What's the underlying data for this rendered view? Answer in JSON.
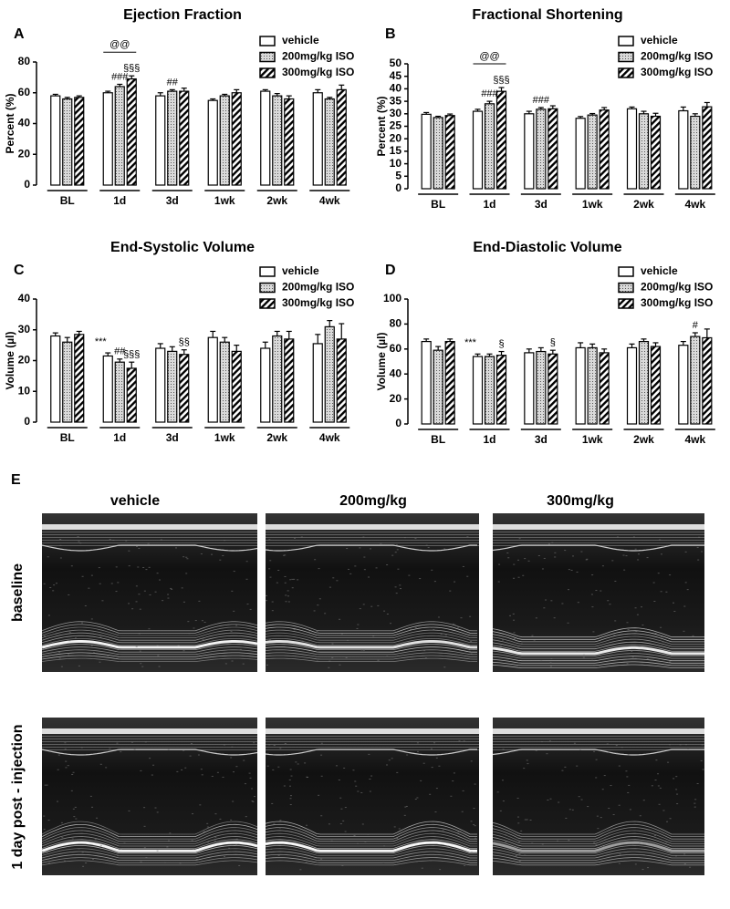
{
  "chart_data": [
    {
      "type": "bar",
      "panel": "A",
      "title": "Ejection Fraction",
      "ylabel": "Percent (%)",
      "categories": [
        "BL",
        "1d",
        "3d",
        "1wk",
        "2wk",
        "4wk"
      ],
      "series": [
        {
          "name": "vehicle",
          "fill": "white",
          "values": [
            58,
            60,
            58,
            55,
            61,
            60
          ],
          "errors": [
            1,
            1,
            2,
            1,
            1,
            2
          ]
        },
        {
          "name": "200mg/kg ISO",
          "fill": "dots",
          "values": [
            56,
            64,
            61,
            58,
            58,
            56
          ],
          "errors": [
            1,
            1.5,
            1,
            1,
            1.5,
            1
          ]
        },
        {
          "name": "300mg/kg ISO",
          "fill": "hatch",
          "values": [
            57,
            69,
            61,
            60,
            56,
            62
          ],
          "errors": [
            1,
            2,
            2,
            2,
            2,
            3
          ]
        }
      ],
      "ylim": [
        0,
        80
      ],
      "yticks": [
        0,
        20,
        40,
        60,
        80
      ],
      "annotations": [
        {
          "text": "@@",
          "category": "1d",
          "bracket": true
        },
        {
          "text": "###",
          "category": "1d",
          "series": "200mg/kg ISO"
        },
        {
          "text": "§§§",
          "category": "1d",
          "series": "300mg/kg ISO"
        },
        {
          "text": "##",
          "category": "3d",
          "series": "200mg/kg ISO"
        }
      ]
    },
    {
      "type": "bar",
      "panel": "B",
      "title": "Fractional Shortening",
      "ylabel": "Percent (%)",
      "categories": [
        "BL",
        "1d",
        "3d",
        "1wk",
        "2wk",
        "4wk"
      ],
      "series": [
        {
          "name": "vehicle",
          "fill": "white",
          "values": [
            29.8,
            31,
            30,
            28.2,
            32,
            31.2
          ],
          "errors": [
            0.7,
            0.8,
            1,
            0.7,
            0.7,
            1.5
          ]
        },
        {
          "name": "200mg/kg ISO",
          "fill": "dots",
          "values": [
            28.5,
            34,
            31.8,
            29.5,
            30,
            29
          ],
          "errors": [
            0.5,
            1,
            0.7,
            0.6,
            1,
            1
          ]
        },
        {
          "name": "300mg/kg ISO",
          "fill": "hatch",
          "values": [
            29.3,
            39,
            32,
            31.5,
            29,
            32.8
          ],
          "errors": [
            0.6,
            1.5,
            1.2,
            1,
            1.2,
            1.7
          ]
        }
      ],
      "ylim": [
        0,
        50
      ],
      "yticks": [
        0,
        5,
        10,
        15,
        20,
        25,
        30,
        35,
        40,
        45,
        50
      ],
      "annotations": [
        {
          "text": "@@",
          "category": "1d",
          "bracket": true
        },
        {
          "text": "###",
          "category": "1d",
          "series": "200mg/kg ISO"
        },
        {
          "text": "§§§",
          "category": "1d",
          "series": "300mg/kg ISO"
        },
        {
          "text": "###",
          "category": "3d",
          "series": "200mg/kg ISO"
        }
      ]
    },
    {
      "type": "bar",
      "panel": "C",
      "title": "End-Systolic Volume",
      "ylabel": "Volume (µl)",
      "categories": [
        "BL",
        "1d",
        "3d",
        "1wk",
        "2wk",
        "4wk"
      ],
      "series": [
        {
          "name": "vehicle",
          "fill": "white",
          "values": [
            28,
            21.5,
            24,
            27.5,
            24,
            25.5
          ],
          "errors": [
            1,
            1,
            1.5,
            2,
            2,
            3
          ]
        },
        {
          "name": "200mg/kg ISO",
          "fill": "dots",
          "values": [
            26,
            19.5,
            23,
            26,
            28,
            31
          ],
          "errors": [
            1.5,
            1,
            1.5,
            1.5,
            1.5,
            2
          ]
        },
        {
          "name": "300mg/kg ISO",
          "fill": "hatch",
          "values": [
            28.5,
            17.5,
            22,
            23,
            27,
            27
          ],
          "errors": [
            1,
            2,
            1.5,
            2,
            2.5,
            5
          ]
        }
      ],
      "ylim": [
        0,
        40
      ],
      "yticks": [
        0,
        10,
        20,
        30,
        40
      ],
      "annotations": [
        {
          "text": "***",
          "category": "1d",
          "series": "vehicle",
          "large": true
        },
        {
          "text": "##",
          "category": "1d",
          "series": "200mg/kg ISO"
        },
        {
          "text": "§§§",
          "category": "1d",
          "series": "300mg/kg ISO"
        },
        {
          "text": "§§",
          "category": "3d",
          "series": "300mg/kg ISO"
        }
      ]
    },
    {
      "type": "bar",
      "panel": "D",
      "title": "End-Diastolic Volume",
      "ylabel": "Volume (µl)",
      "categories": [
        "BL",
        "1d",
        "3d",
        "1wk",
        "2wk",
        "4wk"
      ],
      "series": [
        {
          "name": "vehicle",
          "fill": "white",
          "values": [
            66,
            54,
            57,
            61,
            61,
            63
          ],
          "errors": [
            2,
            2,
            3,
            4,
            3,
            3
          ]
        },
        {
          "name": "200mg/kg ISO",
          "fill": "dots",
          "values": [
            59,
            54,
            58,
            61,
            66,
            70
          ],
          "errors": [
            3,
            2,
            3,
            3,
            2,
            3
          ]
        },
        {
          "name": "300mg/kg ISO",
          "fill": "hatch",
          "values": [
            66,
            55,
            56,
            57,
            62,
            69
          ],
          "errors": [
            2,
            3,
            3,
            3,
            3,
            7
          ]
        }
      ],
      "ylim": [
        0,
        100
      ],
      "yticks": [
        0,
        20,
        40,
        60,
        80,
        100
      ],
      "annotations": [
        {
          "text": "***",
          "category": "1d",
          "series": "vehicle",
          "large": true
        },
        {
          "text": "§",
          "category": "1d",
          "series": "300mg/kg ISO"
        },
        {
          "text": "§",
          "category": "3d",
          "series": "300mg/kg ISO"
        },
        {
          "text": "#",
          "category": "4wk",
          "series": "200mg/kg ISO"
        }
      ]
    }
  ],
  "panel_e": {
    "label": "E",
    "columns": [
      "vehicle",
      "200mg/kg",
      "300mg/kg"
    ],
    "rows": [
      "baseline",
      "1 day post - injection"
    ]
  }
}
